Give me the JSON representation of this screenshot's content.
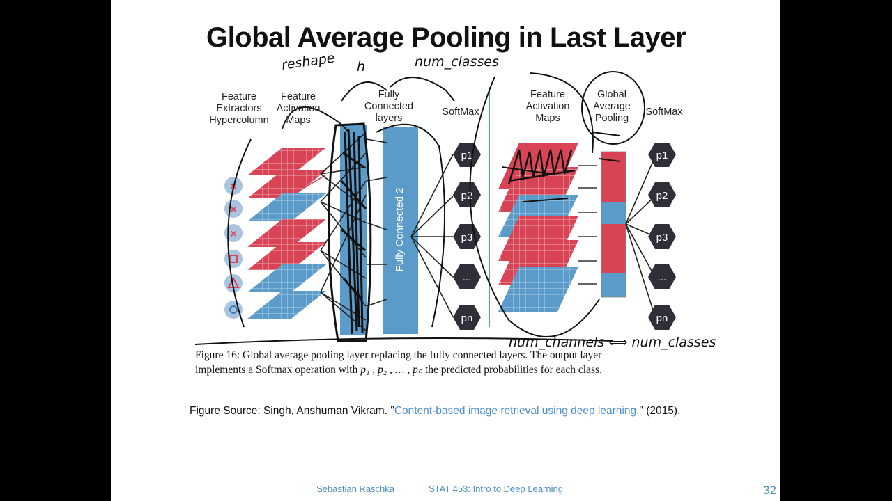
{
  "slide": {
    "title": "Global Average Pooling in Last Layer",
    "labels": {
      "feature_extractors": "Feature Extractors Hypercolumn",
      "feature_activation_maps": "Feature Activation Maps",
      "fully_connected_layers": "Fully Connected layers",
      "softmax_left": "SoftMax",
      "feature_activation_maps_right": "Feature Activation Maps",
      "global_average_pooling": "Global Average Pooling",
      "softmax_right": "SoftMax",
      "fc2": "Fully Connected 2"
    },
    "hex_labels": [
      "p1",
      "p2",
      "p3",
      "...",
      "pn"
    ],
    "input_icons": [
      "×",
      "×",
      "×",
      "□",
      "△",
      "○"
    ],
    "handwriting": {
      "reshape": "reshape",
      "h": "h",
      "num_classes": "num_classes",
      "num_channels": "num_channels ⟺ num_classes"
    },
    "caption": {
      "line1": "Figure 16: Global average pooling layer replacing the fully connected layers. The output layer",
      "line2_pre": "implements a Softmax operation with ",
      "line2_math": "p₁ , p₂ ,  … , pₙ",
      "line2_post": " the predicted probabilities for each class."
    },
    "source": {
      "prefix": "Figure Source: Singh, Anshuman Vikram. \"",
      "link": "Content-based image retrieval using deep learning.",
      "suffix": "\" (2015)."
    },
    "footer": {
      "author": "Sebastian Raschka",
      "course": "STAT 453: Intro to Deep Learning",
      "page": "32"
    },
    "colors": {
      "red": "#d84455",
      "blue": "#5b9bc9",
      "hex": "#2f2f3a",
      "link": "#4a8fd0"
    }
  }
}
